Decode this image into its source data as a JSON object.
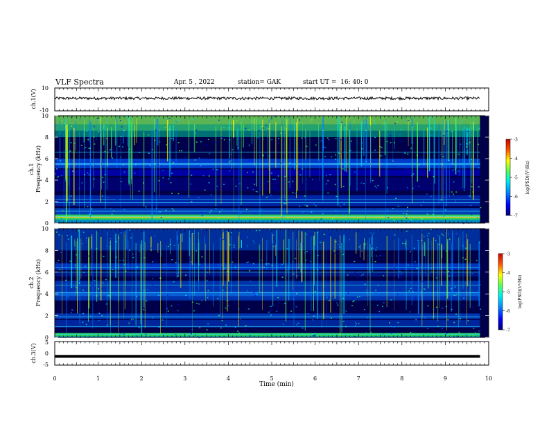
{
  "header": {
    "title": "VLF Spectra",
    "date": "Apr. 5 , 2022",
    "station": "station= GAK",
    "start": "start UT =  16: 40: 0"
  },
  "colors": {
    "spectrogram_background": "#00004a",
    "colorbar": [
      "#00007a",
      "#0000ff",
      "#0088ff",
      "#00eeee",
      "#55ff55",
      "#ffff00",
      "#ff5500",
      "#cc0000"
    ]
  },
  "chart_data": [
    {
      "type": "line",
      "panel": "ch1-waveform",
      "ylabel": "ch.1(V)",
      "ylim": [
        -10,
        10
      ],
      "yticks": [
        "10",
        "-10"
      ],
      "xlim": [
        0,
        10
      ],
      "series": [
        {
          "values_mean": 1,
          "noise_amplitude": 1.2
        }
      ]
    },
    {
      "type": "heatmap",
      "panel": "ch1-spectrogram",
      "ylabel": [
        "ch.1",
        "Frequency (kHz)"
      ],
      "ylim": [
        0,
        10
      ],
      "yticks": [
        "0",
        "2",
        "4",
        "6",
        "8",
        "10"
      ],
      "xlim": [
        0,
        10
      ],
      "colorbar": {
        "label": "log(PSD)(V²/Hz)",
        "ticks": [
          "-3",
          "-4",
          "-5",
          "-6",
          "-7"
        ],
        "range": [
          -7,
          -3
        ]
      }
    },
    {
      "type": "heatmap",
      "panel": "ch2-spectrogram",
      "ylabel": [
        "ch.2",
        "Frequency (kHz)"
      ],
      "ylim": [
        0,
        10
      ],
      "yticks": [
        "0",
        "2",
        "4",
        "6",
        "8",
        "10"
      ],
      "xlim": [
        0,
        10
      ],
      "colorbar": {
        "label": "log(PSD)(V²/Hz)",
        "ticks": [
          "-3",
          "-4",
          "-5",
          "-6",
          "-7"
        ],
        "range": [
          -7,
          -3
        ]
      }
    },
    {
      "type": "line",
      "panel": "ch3-waveform",
      "ylabel": "ch.3(V)",
      "ylim": [
        -5,
        5
      ],
      "yticks": [
        "5",
        "0",
        "-5"
      ],
      "xlim": [
        0,
        10
      ],
      "series": [
        {
          "values_mean": -1.3
        }
      ]
    }
  ],
  "xaxis": {
    "label": "Time (min)",
    "ticks": [
      "0",
      "1",
      "2",
      "3",
      "4",
      "5",
      "6",
      "7",
      "8",
      "9",
      "10"
    ]
  }
}
